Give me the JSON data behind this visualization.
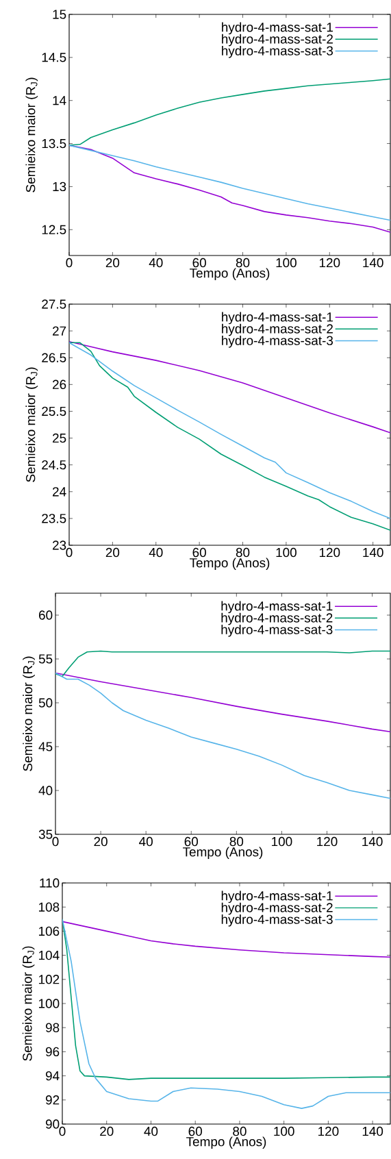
{
  "chart_data": [
    {
      "type": "line",
      "xlabel": "Tempo (Anos)",
      "ylabel": "Semieixo maior (R$_{J}$)",
      "xlim": [
        0,
        148
      ],
      "xticks": [
        0,
        20,
        40,
        60,
        80,
        100,
        120,
        140
      ],
      "ylim": [
        12.2,
        15
      ],
      "yticks": [
        12.5,
        13,
        13.5,
        14,
        14.5,
        15
      ],
      "legend": "top right",
      "grid": false,
      "marker": "none",
      "series": [
        {
          "name": "hydro-4-mass-sat-1",
          "color": "#9400d3",
          "x": [
            0,
            10,
            20,
            30,
            40,
            50,
            60,
            70,
            75,
            80,
            90,
            100,
            110,
            120,
            130,
            140,
            148
          ],
          "values": [
            13.48,
            13.43,
            13.33,
            13.16,
            13.09,
            13.03,
            12.96,
            12.88,
            12.81,
            12.78,
            12.71,
            12.67,
            12.64,
            12.6,
            12.57,
            12.53,
            12.47
          ]
        },
        {
          "name": "hydro-4-mass-sat-2",
          "color": "#009e73",
          "x": [
            0,
            5,
            10,
            20,
            30,
            40,
            50,
            60,
            70,
            80,
            90,
            100,
            110,
            120,
            130,
            140,
            148
          ],
          "values": [
            13.48,
            13.49,
            13.57,
            13.66,
            13.74,
            13.83,
            13.91,
            13.98,
            14.03,
            14.07,
            14.11,
            14.14,
            14.17,
            14.19,
            14.21,
            14.23,
            14.25
          ]
        },
        {
          "name": "hydro-4-mass-sat-3",
          "color": "#56b4e9",
          "x": [
            0,
            10,
            20,
            30,
            40,
            50,
            60,
            70,
            80,
            90,
            100,
            110,
            120,
            130,
            140,
            148
          ],
          "values": [
            13.48,
            13.42,
            13.36,
            13.3,
            13.23,
            13.17,
            13.11,
            13.05,
            12.98,
            12.92,
            12.86,
            12.8,
            12.75,
            12.7,
            12.65,
            12.61
          ]
        }
      ]
    },
    {
      "type": "line",
      "xlabel": "Tempo (Anos)",
      "ylabel": "Semieixo maior (R$_{J}$)",
      "xlim": [
        0,
        148
      ],
      "xticks": [
        0,
        20,
        40,
        60,
        80,
        100,
        120,
        140
      ],
      "ylim": [
        23,
        27.5
      ],
      "yticks": [
        23,
        23.5,
        24,
        24.5,
        25,
        25.5,
        26,
        26.5,
        27,
        27.5
      ],
      "legend": "top right",
      "grid": false,
      "marker": "none",
      "series": [
        {
          "name": "hydro-4-mass-sat-1",
          "color": "#9400d3",
          "x": [
            0,
            20,
            40,
            60,
            80,
            100,
            120,
            140,
            148
          ],
          "values": [
            26.8,
            26.61,
            26.45,
            26.26,
            26.03,
            25.75,
            25.47,
            25.21,
            25.1
          ]
        },
        {
          "name": "hydro-4-mass-sat-2",
          "color": "#009e73",
          "x": [
            0,
            5,
            10,
            14,
            20,
            27,
            30,
            40,
            50,
            60,
            70,
            80,
            90,
            100,
            110,
            115,
            120,
            130,
            140,
            148
          ],
          "values": [
            26.78,
            26.78,
            26.62,
            26.35,
            26.12,
            25.95,
            25.78,
            25.48,
            25.2,
            24.98,
            24.7,
            24.49,
            24.27,
            24.1,
            23.92,
            23.85,
            23.72,
            23.52,
            23.4,
            23.28
          ]
        },
        {
          "name": "hydro-4-mass-sat-3",
          "color": "#56b4e9",
          "x": [
            0,
            10,
            20,
            30,
            40,
            50,
            60,
            70,
            80,
            90,
            95,
            100,
            110,
            120,
            130,
            140,
            148
          ],
          "values": [
            26.78,
            26.55,
            26.25,
            25.98,
            25.75,
            25.52,
            25.3,
            25.07,
            24.85,
            24.63,
            24.55,
            24.35,
            24.17,
            23.98,
            23.82,
            23.63,
            23.5
          ]
        }
      ]
    },
    {
      "type": "line",
      "xlabel": "Tempo (Anos)",
      "ylabel": "Semieixo maior (R$_{J}$)",
      "xlim": [
        0,
        148
      ],
      "xticks": [
        0,
        20,
        40,
        60,
        80,
        100,
        120,
        140
      ],
      "ylim": [
        35,
        62.5
      ],
      "yticks": [
        35,
        40,
        45,
        50,
        55,
        60
      ],
      "legend": "top right",
      "grid": false,
      "marker": "none",
      "series": [
        {
          "name": "hydro-4-mass-sat-1",
          "color": "#9400d3",
          "x": [
            0,
            20,
            40,
            60,
            80,
            100,
            120,
            140,
            148
          ],
          "values": [
            53.4,
            52.4,
            51.5,
            50.6,
            49.6,
            48.7,
            47.9,
            47.0,
            46.7
          ]
        },
        {
          "name": "hydro-4-mass-sat-2",
          "color": "#009e73",
          "x": [
            0,
            3,
            6,
            10,
            14,
            20,
            25,
            30,
            40,
            60,
            80,
            100,
            120,
            130,
            140,
            148
          ],
          "values": [
            53.3,
            53.0,
            54.0,
            55.2,
            55.8,
            55.9,
            55.8,
            55.8,
            55.8,
            55.8,
            55.8,
            55.8,
            55.8,
            55.7,
            55.9,
            55.9
          ]
        },
        {
          "name": "hydro-4-mass-sat-3",
          "color": "#56b4e9",
          "x": [
            0,
            5,
            10,
            15,
            20,
            25,
            30,
            40,
            50,
            60,
            70,
            80,
            90,
            100,
            110,
            120,
            130,
            140,
            148
          ],
          "values": [
            53.4,
            52.7,
            52.7,
            52.0,
            51.1,
            50.0,
            49.1,
            48.0,
            47.1,
            46.1,
            45.4,
            44.7,
            43.9,
            42.9,
            41.7,
            40.9,
            40.0,
            39.5,
            39.1
          ]
        }
      ]
    },
    {
      "type": "line",
      "xlabel": "Tempo (Anos)",
      "ylabel": "Semieixo maior (R$_{J}$)",
      "xlim": [
        0,
        148
      ],
      "xticks": [
        0,
        20,
        40,
        60,
        80,
        100,
        120,
        140
      ],
      "ylim": [
        90,
        110
      ],
      "yticks": [
        90,
        92,
        94,
        96,
        98,
        100,
        102,
        104,
        106,
        108,
        110
      ],
      "legend": "top right",
      "grid": false,
      "marker": "none",
      "series": [
        {
          "name": "hydro-4-mass-sat-1",
          "color": "#9400d3",
          "x": [
            0,
            10,
            20,
            30,
            40,
            50,
            60,
            80,
            100,
            120,
            140,
            148
          ],
          "values": [
            106.8,
            106.4,
            106.0,
            105.6,
            105.2,
            104.95,
            104.75,
            104.45,
            104.2,
            104.05,
            103.9,
            103.85
          ]
        },
        {
          "name": "hydro-4-mass-sat-2",
          "color": "#009e73",
          "x": [
            0,
            2,
            4,
            6,
            8,
            10,
            20,
            30,
            40,
            60,
            80,
            100,
            120,
            140,
            148
          ],
          "values": [
            107.0,
            104.5,
            100.5,
            96.5,
            94.4,
            94.0,
            93.9,
            93.7,
            93.8,
            93.8,
            93.8,
            93.8,
            93.85,
            93.9,
            93.9
          ]
        },
        {
          "name": "hydro-4-mass-sat-3",
          "color": "#56b4e9",
          "x": [
            0,
            4,
            8,
            12,
            15,
            20,
            30,
            40,
            43,
            50,
            58,
            70,
            80,
            90,
            100,
            108,
            113,
            120,
            128,
            140,
            148
          ],
          "values": [
            107.0,
            103.5,
            98.5,
            95.0,
            93.8,
            92.7,
            92.1,
            91.9,
            91.9,
            92.7,
            93.0,
            92.9,
            92.7,
            92.3,
            91.6,
            91.3,
            91.5,
            92.3,
            92.6,
            92.6,
            92.6
          ]
        }
      ]
    }
  ]
}
